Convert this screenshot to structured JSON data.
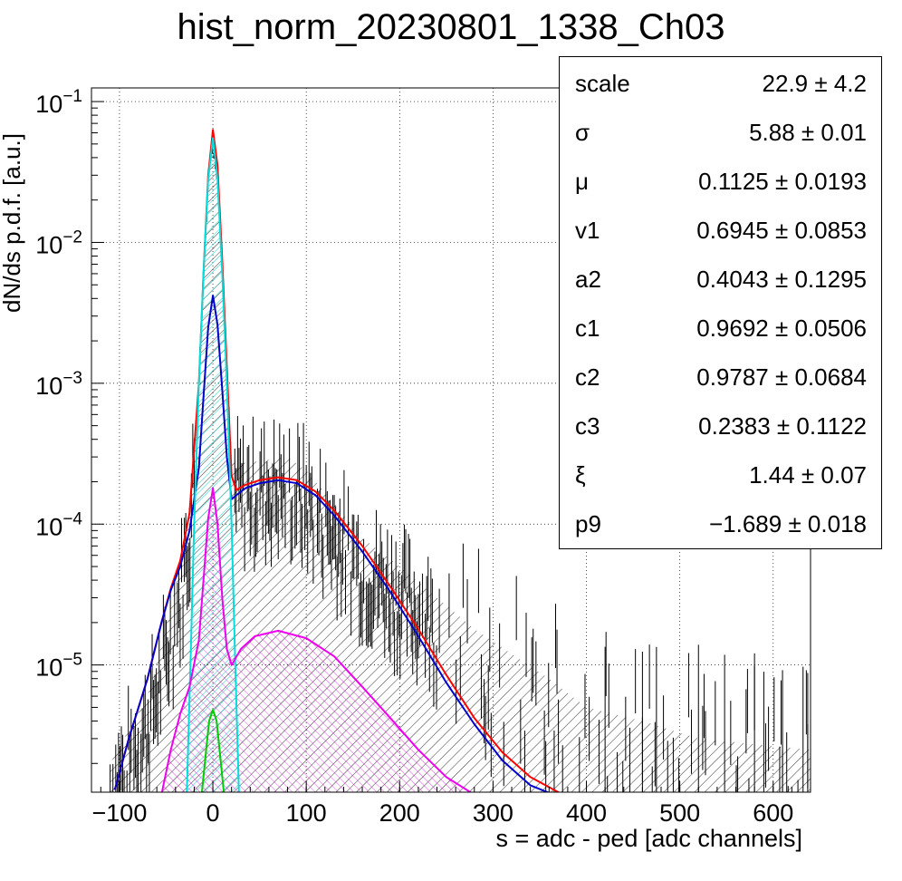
{
  "chart_data": {
    "type": "line",
    "title": "hist_norm_20230801_1338_Ch03",
    "xlabel": "s = adc - ped [adc channels]",
    "ylabel": "dN/ds p.d.f. [a.u.]",
    "xlim": [
      -130,
      640
    ],
    "ylim": [
      1.25e-06,
      0.125
    ],
    "yscale": "log",
    "grid": true,
    "x_ticks": [
      "−100",
      "0",
      "100",
      "200",
      "300",
      "400",
      "500",
      "600"
    ],
    "x_tick_values": [
      -100,
      0,
      100,
      200,
      300,
      400,
      500,
      600
    ],
    "y_ticks": [
      {
        "base": "10",
        "exp": "−1",
        "value": 0.1
      },
      {
        "base": "10",
        "exp": "−2",
        "value": 0.01
      },
      {
        "base": "10",
        "exp": "−3",
        "value": 0.001
      },
      {
        "base": "10",
        "exp": "−4",
        "value": 0.0001
      },
      {
        "base": "10",
        "exp": "−5",
        "value": 1e-05
      }
    ],
    "series": [
      {
        "color": "#ff0000",
        "kind": "total-fit",
        "x": [
          -105,
          -90,
          -70,
          -55,
          -45,
          -35,
          -25,
          -15,
          -10,
          -5,
          0,
          5,
          10,
          15,
          20,
          25,
          35,
          50,
          70,
          90,
          110,
          130,
          160,
          190,
          220,
          250,
          280,
          310,
          340,
          375
        ],
        "y": [
          1.3e-06,
          3e-06,
          8e-06,
          2e-05,
          3.5e-05,
          5.5e-05,
          0.00012,
          0.001,
          0.006,
          0.03,
          0.063,
          0.035,
          0.0075,
          0.0013,
          0.00022,
          0.000175,
          0.00019,
          0.000205,
          0.000215,
          0.000205,
          0.00017,
          0.000125,
          7e-05,
          3.6e-05,
          1.8e-05,
          8.5e-06,
          4.2e-06,
          2.4e-06,
          1.6e-06,
          1.2e-06
        ]
      },
      {
        "color": "#0000cc",
        "kind": "component",
        "x": [
          -105,
          -90,
          -70,
          -55,
          -45,
          -35,
          -25,
          -15,
          -10,
          -5,
          0,
          5,
          10,
          15,
          20,
          25,
          35,
          50,
          70,
          90,
          110,
          130,
          160,
          190,
          220,
          250,
          280,
          310,
          340,
          365
        ],
        "y": [
          1.3e-06,
          3e-06,
          8e-06,
          2e-05,
          3.4e-05,
          5e-05,
          9e-05,
          0.00025,
          0.0008,
          0.0025,
          0.0042,
          0.0026,
          0.0009,
          0.0003,
          0.00015,
          0.00016,
          0.00018,
          0.000195,
          0.000205,
          0.000195,
          0.00016,
          0.000115,
          6.4e-05,
          3.3e-05,
          1.6e-05,
          7.5e-06,
          3.8e-06,
          2.1e-06,
          1.4e-06,
          1.2e-06
        ]
      },
      {
        "color": "#00dddd",
        "kind": "component",
        "x": [
          -28,
          -24,
          -20,
          -15,
          -10,
          -5,
          0,
          5,
          10,
          15,
          20,
          24,
          28
        ],
        "y": [
          1.2e-06,
          1e-05,
          0.0001,
          0.001,
          0.006,
          0.028,
          0.055,
          0.028,
          0.006,
          0.001,
          0.0001,
          1e-05,
          1.2e-06
        ]
      },
      {
        "color": "#ee00ee",
        "kind": "component",
        "x": [
          -55,
          -45,
          -35,
          -25,
          -15,
          -10,
          -5,
          0,
          5,
          10,
          15,
          20,
          30,
          45,
          70,
          100,
          130,
          160,
          190,
          220,
          250,
          280
        ],
        "y": [
          1.2e-06,
          2.5e-06,
          4.5e-06,
          7e-06,
          1.5e-05,
          4e-05,
          0.00011,
          0.00018,
          0.0001,
          3e-05,
          1.3e-05,
          1e-05,
          1.3e-05,
          1.6e-05,
          1.75e-05,
          1.55e-05,
          1.15e-05,
          7e-06,
          4.2e-06,
          2.5e-06,
          1.6e-06,
          1.2e-06
        ]
      },
      {
        "color": "#00cc00",
        "kind": "component",
        "x": [
          -12,
          -8,
          -4,
          0,
          4,
          8,
          12
        ],
        "y": [
          1.2e-06,
          2.2e-06,
          4e-06,
          4.8e-06,
          4e-06,
          2.2e-06,
          1.2e-06
        ]
      }
    ],
    "histogram_profile": {
      "x": [
        -110,
        -70,
        -55,
        -45,
        -35,
        -25,
        -15,
        -10,
        -5,
        0,
        5,
        10,
        15,
        20,
        30,
        50,
        80,
        100,
        130,
        160,
        200,
        240,
        280,
        320,
        360,
        400,
        460,
        520,
        640
      ],
      "y": [
        2e-06,
        6e-06,
        1.4e-05,
        2.6e-05,
        5e-05,
        0.00014,
        0.0012,
        0.007,
        0.03,
        0.06,
        0.034,
        0.0075,
        0.0014,
        0.00028,
        0.00027,
        0.00028,
        0.0003,
        0.00024,
        0.00014,
        8e-05,
        5e-05,
        3e-05,
        1.8e-05,
        1.2e-05,
        8e-06,
        5e-06,
        4e-06,
        3e-06,
        2.5e-06
      ]
    },
    "stats_box": [
      {
        "name": "scale",
        "value": "22.9 ± 4.2"
      },
      {
        "name": "σ",
        "value": "5.88 ± 0.01"
      },
      {
        "name": "μ",
        "value": "0.1125 ± 0.0193"
      },
      {
        "name": "v1",
        "value": "0.6945 ± 0.0853"
      },
      {
        "name": "a2",
        "value": "0.4043 ± 0.1295"
      },
      {
        "name": "c1",
        "value": "0.9692 ± 0.0506"
      },
      {
        "name": "c2",
        "value": "0.9787 ± 0.0684"
      },
      {
        "name": "c3",
        "value": "0.2383 ± 0.1122"
      },
      {
        "name": "ξ",
        "value": "1.44 ± 0.07"
      },
      {
        "name": "p9",
        "value": "−1.689 ± 0.018"
      }
    ]
  }
}
